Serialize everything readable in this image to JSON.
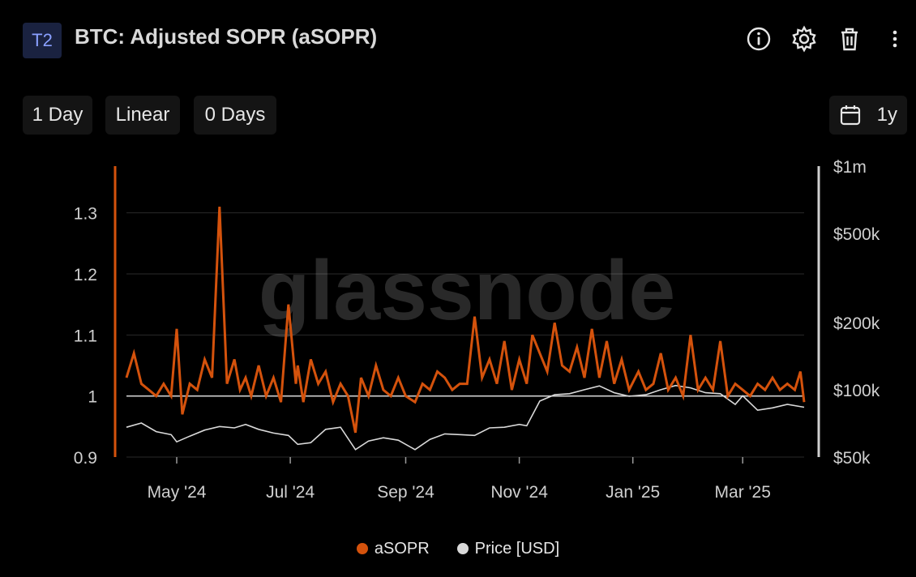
{
  "header": {
    "badge": "T2",
    "title": "BTC: Adjusted SOPR (aSOPR)",
    "icons": [
      "info-icon",
      "gear-icon",
      "trash-icon",
      "more-vertical-icon"
    ]
  },
  "controls": {
    "resolution": "1 Day",
    "scale": "Linear",
    "moving_average": "0 Days",
    "range": "1y",
    "range_icon": "calendar-icon"
  },
  "watermark": "glassnode",
  "colors": {
    "background": "#000000",
    "asopr": "#d4520c",
    "price": "#d9d9d9",
    "grid": "#2a2a2a",
    "reference_line": "#cfcfcf"
  },
  "chart_data": {
    "type": "line",
    "title": "BTC: Adjusted SOPR (aSOPR)",
    "x_tick_labels": [
      "May '24",
      "Jul '24",
      "Sep '24",
      "Nov '24",
      "Jan '25",
      "Mar '25"
    ],
    "x_tick_dates": [
      "2024-05-01",
      "2024-07-01",
      "2024-09-01",
      "2024-11-01",
      "2025-01-01",
      "2025-03-01"
    ],
    "x_range": [
      "2024-04-04",
      "2025-04-03"
    ],
    "y_left": {
      "ticks": [
        "0.9",
        "1",
        "1.1",
        "1.2",
        "1.3"
      ],
      "range": [
        0.9,
        1.35
      ],
      "scale": "linear"
    },
    "y_right": {
      "ticks": [
        "$50k",
        "$100k",
        "$200k",
        "$500k",
        "$1m"
      ],
      "tick_values": [
        50000,
        100000,
        200000,
        500000,
        1000000
      ],
      "range": [
        50000,
        1000000
      ],
      "scale": "log"
    },
    "reference_line": 1.0,
    "grid": true,
    "legend_position": "bottom-center",
    "series": [
      {
        "name": "aSOPR",
        "axis": "left",
        "x": [
          "2024-04-04",
          "2024-04-08",
          "2024-04-12",
          "2024-04-16",
          "2024-04-20",
          "2024-04-24",
          "2024-04-28",
          "2024-05-01",
          "2024-05-04",
          "2024-05-08",
          "2024-05-12",
          "2024-05-16",
          "2024-05-20",
          "2024-05-24",
          "2024-05-28",
          "2024-06-01",
          "2024-06-04",
          "2024-06-07",
          "2024-06-10",
          "2024-06-14",
          "2024-06-18",
          "2024-06-22",
          "2024-06-26",
          "2024-06-30",
          "2024-07-04",
          "2024-07-05",
          "2024-07-08",
          "2024-07-12",
          "2024-07-16",
          "2024-07-20",
          "2024-07-24",
          "2024-07-28",
          "2024-08-01",
          "2024-08-05",
          "2024-08-08",
          "2024-08-12",
          "2024-08-16",
          "2024-08-20",
          "2024-08-24",
          "2024-08-28",
          "2024-09-01",
          "2024-09-06",
          "2024-09-10",
          "2024-09-14",
          "2024-09-18",
          "2024-09-22",
          "2024-09-26",
          "2024-09-30",
          "2024-10-04",
          "2024-10-08",
          "2024-10-12",
          "2024-10-16",
          "2024-10-20",
          "2024-10-24",
          "2024-10-28",
          "2024-11-01",
          "2024-11-05",
          "2024-11-08",
          "2024-11-12",
          "2024-11-16",
          "2024-11-20",
          "2024-11-24",
          "2024-11-28",
          "2024-12-02",
          "2024-12-06",
          "2024-12-10",
          "2024-12-14",
          "2024-12-18",
          "2024-12-22",
          "2024-12-26",
          "2024-12-30",
          "2025-01-04",
          "2025-01-08",
          "2025-01-12",
          "2025-01-16",
          "2025-01-20",
          "2025-01-24",
          "2025-01-28",
          "2025-02-01",
          "2025-02-05",
          "2025-02-09",
          "2025-02-13",
          "2025-02-17",
          "2025-02-21",
          "2025-02-25",
          "2025-03-01",
          "2025-03-05",
          "2025-03-09",
          "2025-03-13",
          "2025-03-17",
          "2025-03-21",
          "2025-03-25",
          "2025-03-29",
          "2025-04-01",
          "2025-04-03"
        ],
        "values": [
          1.03,
          1.07,
          1.02,
          1.01,
          1.0,
          1.02,
          1.0,
          1.11,
          0.97,
          1.02,
          1.01,
          1.06,
          1.03,
          1.31,
          1.02,
          1.06,
          1.01,
          1.03,
          1.0,
          1.05,
          1.0,
          1.03,
          0.99,
          1.15,
          1.02,
          1.05,
          0.99,
          1.06,
          1.02,
          1.04,
          0.99,
          1.02,
          1.0,
          0.94,
          1.03,
          1.0,
          1.05,
          1.01,
          1.0,
          1.03,
          1.0,
          0.99,
          1.02,
          1.01,
          1.04,
          1.03,
          1.01,
          1.02,
          1.02,
          1.13,
          1.03,
          1.06,
          1.02,
          1.09,
          1.01,
          1.06,
          1.02,
          1.1,
          1.07,
          1.04,
          1.12,
          1.05,
          1.04,
          1.08,
          1.03,
          1.11,
          1.03,
          1.09,
          1.02,
          1.06,
          1.01,
          1.04,
          1.01,
          1.02,
          1.07,
          1.01,
          1.03,
          1.0,
          1.1,
          1.01,
          1.03,
          1.01,
          1.09,
          1.0,
          1.02,
          1.01,
          1.0,
          1.02,
          1.01,
          1.03,
          1.01,
          1.02,
          1.01,
          1.04,
          0.99
        ]
      },
      {
        "name": "Price [USD]",
        "axis": "right",
        "x": [
          "2024-04-04",
          "2024-04-12",
          "2024-04-20",
          "2024-04-28",
          "2024-05-01",
          "2024-05-08",
          "2024-05-16",
          "2024-05-24",
          "2024-06-01",
          "2024-06-07",
          "2024-06-14",
          "2024-06-22",
          "2024-06-30",
          "2024-07-05",
          "2024-07-12",
          "2024-07-20",
          "2024-07-28",
          "2024-08-05",
          "2024-08-12",
          "2024-08-20",
          "2024-08-28",
          "2024-09-06",
          "2024-09-14",
          "2024-09-22",
          "2024-09-30",
          "2024-10-08",
          "2024-10-16",
          "2024-10-24",
          "2024-11-01",
          "2024-11-05",
          "2024-11-12",
          "2024-11-20",
          "2024-11-28",
          "2024-12-06",
          "2024-12-14",
          "2024-12-22",
          "2024-12-30",
          "2025-01-08",
          "2025-01-16",
          "2025-01-24",
          "2025-02-01",
          "2025-02-09",
          "2025-02-17",
          "2025-02-25",
          "2025-03-01",
          "2025-03-09",
          "2025-03-17",
          "2025-03-25",
          "2025-04-03"
        ],
        "values": [
          68000,
          71000,
          65000,
          63000,
          58500,
          62000,
          66000,
          68500,
          67500,
          70000,
          66500,
          64000,
          62500,
          57000,
          58000,
          66500,
          68000,
          54000,
          59000,
          61000,
          59500,
          54000,
          60000,
          63500,
          63000,
          62500,
          67500,
          68000,
          70000,
          69000,
          89000,
          95000,
          96000,
          100000,
          104000,
          97000,
          93500,
          95000,
          100000,
          104500,
          102000,
          97000,
          96000,
          86000,
          94000,
          81000,
          83000,
          86000,
          83500
        ]
      }
    ]
  },
  "legend": [
    {
      "label": "aSOPR",
      "color": "#d4520c"
    },
    {
      "label": "Price [USD]",
      "color": "#d9d9d9"
    }
  ]
}
